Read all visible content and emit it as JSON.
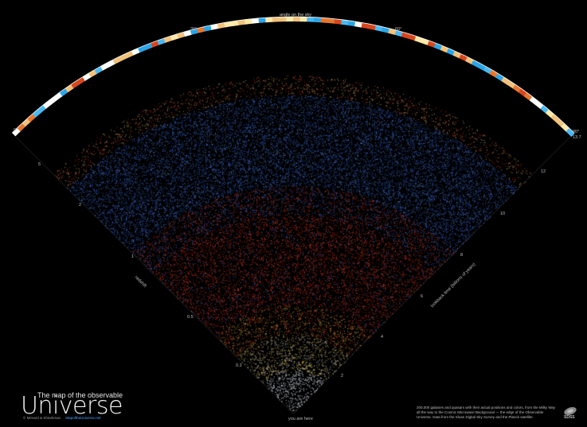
{
  "arc": {
    "top_label": "angle on the sky",
    "angle_labels": [
      "0°",
      "30°",
      "60°",
      "90°"
    ],
    "band_colors": [
      "#ffffff",
      "#f2c27a",
      "#e8762e",
      "#d8461e",
      "#4bb8f0",
      "#2aa6e8",
      "#ffe9a8"
    ]
  },
  "redshift_axis": {
    "title": "redshift",
    "ticks": [
      "5",
      "2",
      "1",
      "0.5",
      "0.2"
    ]
  },
  "lookback_axis": {
    "title": "lookback time (billions of years)",
    "ticks": [
      "13.7",
      "12",
      "10",
      "8",
      "6",
      "4",
      "2"
    ]
  },
  "apex_label": "you are here",
  "title": {
    "small": "The map of the observable",
    "big": "Universe"
  },
  "credits": {
    "authors": "© Ménard & Shtarkman",
    "link": "MapoftheUniverse.net"
  },
  "description": "200,000 galaxies and quasars with their actual positions and colors, from the Milky Way all the way to the Cosmic Microwave Background — the edge of the Observable Universe. Data from the Sloan Digital Sky Survey and the Planck satellite.",
  "logo_text": "SDSS",
  "colors": {
    "background": "#000000",
    "near_galaxies": "#d8dde8",
    "yellow_galaxies": "#e7c24a",
    "red_galaxies": "#e23a1e",
    "blue_galaxies": "#3d6fe0",
    "edge_galaxies": "#f3d27a",
    "link": "#4ba0ff"
  }
}
